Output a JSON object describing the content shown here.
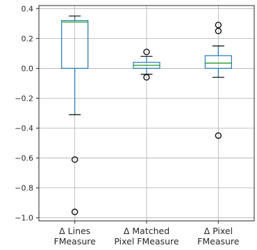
{
  "chart_data": {
    "type": "box",
    "title": "",
    "xlabel": "",
    "ylabel": "",
    "ylim": [
      -1.02,
      0.42
    ],
    "yticks": [
      0.4,
      0.2,
      0.0,
      -0.2,
      -0.4,
      -0.6,
      -0.8,
      -1.0
    ],
    "ytick_labels": [
      "0.4",
      "0.2",
      "0.0",
      "−0.2",
      "−0.4",
      "−0.6",
      "−0.8",
      "−1.0"
    ],
    "grid": true,
    "colors": {
      "box": "#1f77b4",
      "median": "#2ca02c",
      "whisker": "#1f77b4",
      "cap": "#000000",
      "flier": "#000000",
      "grid": "#b0b0b0"
    },
    "categories": [
      {
        "line1": "Δ Lines",
        "line2": "FMeasure"
      },
      {
        "line1": "Δ Matched",
        "line2": "Pixel FMeasure"
      },
      {
        "line1": "Δ Pixel",
        "line2": "FMeasure"
      }
    ],
    "boxes": [
      {
        "whislo": -0.31,
        "q1": 0.0,
        "med": 0.31,
        "q3": 0.32,
        "whishi": 0.35,
        "fliers": [
          -0.61,
          -0.96
        ]
      },
      {
        "whislo": -0.04,
        "q1": 0.0,
        "med": 0.02,
        "q3": 0.04,
        "whishi": 0.08,
        "fliers": [
          0.11,
          -0.06
        ]
      },
      {
        "whislo": -0.06,
        "q1": 0.0,
        "med": 0.035,
        "q3": 0.085,
        "whishi": 0.15,
        "fliers": [
          0.29,
          0.25,
          -0.45
        ]
      }
    ]
  }
}
